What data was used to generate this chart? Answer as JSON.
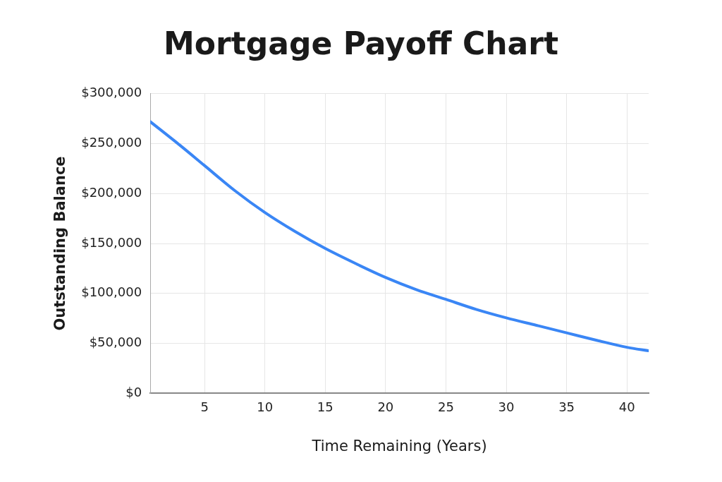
{
  "chart_data": {
    "type": "line",
    "title": "Mortgage Payoff Chart",
    "xlabel": "Time Remaining (Years)",
    "ylabel": "Outstanding Balance",
    "x": [
      0.5,
      3,
      5,
      7.5,
      10,
      12.5,
      15,
      17.5,
      20,
      22.5,
      25,
      27.5,
      30,
      32.5,
      35,
      37.5,
      40,
      41.8
    ],
    "series": [
      {
        "color": "#3a86f5",
        "values": [
          272000,
          248000,
          228000,
          203000,
          181000,
          162000,
          145000,
          130000,
          116000,
          104000,
          94000,
          84000,
          75500,
          68000,
          60500,
          53000,
          46000,
          42500
        ]
      }
    ],
    "xlim": [
      0.5,
      41.8
    ],
    "xticks": [
      5,
      10,
      15,
      20,
      25,
      30,
      35,
      40
    ],
    "ylim": [
      0,
      300000
    ],
    "yticks": [
      {
        "value": 0,
        "label": "$0"
      },
      {
        "value": 50000,
        "label": "$50,000"
      },
      {
        "value": 100000,
        "label": "$100,000"
      },
      {
        "value": 150000,
        "label": "$150,000"
      },
      {
        "value": 200000,
        "label": "$200,000"
      },
      {
        "value": 250000,
        "label": "$250,000"
      },
      {
        "value": 300000,
        "label": "$300,000"
      }
    ],
    "grid": true,
    "legend": false,
    "marker": "none",
    "line_style": "solid"
  }
}
